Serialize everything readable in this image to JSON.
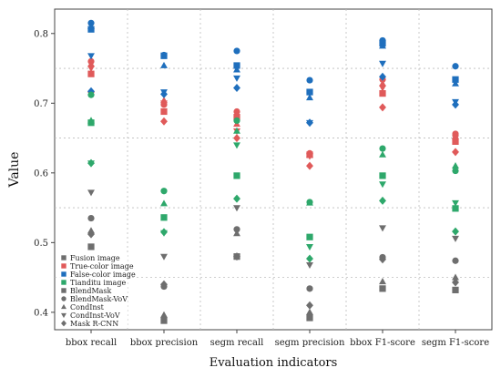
{
  "chart_data": {
    "type": "scatter",
    "xlabel": "Evaluation indicators",
    "ylabel": "Value",
    "categories": [
      "bbox recall",
      "bbox precision",
      "segm recall",
      "segm precision",
      "bbox F1-score",
      "segm F1-score"
    ],
    "ylim": [
      0.375,
      0.835
    ],
    "yticks": [
      0.4,
      0.5,
      0.6,
      0.7,
      0.8
    ],
    "ytick_labels": [
      "0.4",
      "0.5",
      "0.6",
      "0.7",
      "0.8"
    ],
    "grid": "dotted horizontal and vertical",
    "legend_position": "bottom-left",
    "colors": {
      "Fusion image": "#6e6e6e",
      "True-color image": "#e05a5a",
      "False-color image": "#1f6fbd",
      "Tianditu image": "#2ea86b"
    },
    "series": [
      {
        "name": "True-color image / BlendMask",
        "color": "#e05a5a",
        "marker": "square",
        "values": [
          0.742,
          0.688,
          0.68,
          0.626,
          0.714,
          0.645
        ]
      },
      {
        "name": "True-color image / BlendMask-VoV",
        "color": "#e05a5a",
        "marker": "circle",
        "values": [
          0.76,
          0.698,
          0.688,
          0.628,
          0.734,
          0.656
        ]
      },
      {
        "name": "True-color image / CondInst",
        "color": "#e05a5a",
        "marker": "triangle-up",
        "values": [
          0.756,
          0.704,
          0.67,
          0.626,
          0.728,
          0.652
        ]
      },
      {
        "name": "True-color image / CondInst-VoV",
        "color": "#e05a5a",
        "marker": "triangle-down",
        "values": [
          0.75,
          0.7,
          0.66,
          0.624,
          0.722,
          0.65
        ]
      },
      {
        "name": "True-color image / Mask R-CNN",
        "color": "#e05a5a",
        "marker": "diamond",
        "values": [
          0.716,
          0.674,
          0.65,
          0.61,
          0.694,
          0.63
        ]
      },
      {
        "name": "False-color image / BlendMask",
        "color": "#1f6fbd",
        "marker": "square",
        "values": [
          0.806,
          0.768,
          0.754,
          0.716,
          0.786,
          0.734
        ]
      },
      {
        "name": "False-color image / BlendMask-VoV",
        "color": "#1f6fbd",
        "marker": "circle",
        "values": [
          0.815,
          0.769,
          0.775,
          0.733,
          0.79,
          0.753
        ]
      },
      {
        "name": "False-color image / CondInst",
        "color": "#1f6fbd",
        "marker": "triangle-up",
        "values": [
          0.81,
          0.754,
          0.748,
          0.708,
          0.782,
          0.728
        ]
      },
      {
        "name": "False-color image / CondInst-VoV",
        "color": "#1f6fbd",
        "marker": "triangle-down",
        "values": [
          0.768,
          0.716,
          0.736,
          0.672,
          0.757,
          0.702
        ]
      },
      {
        "name": "False-color image / Mask R-CNN",
        "color": "#1f6fbd",
        "marker": "diamond",
        "values": [
          0.717,
          0.713,
          0.722,
          0.672,
          0.738,
          0.698
        ]
      },
      {
        "name": "Tianditu image / BlendMask",
        "color": "#2ea86b",
        "marker": "square",
        "values": [
          0.672,
          0.536,
          0.596,
          0.508,
          0.596,
          0.549
        ]
      },
      {
        "name": "Tianditu image / BlendMask-VoV",
        "color": "#2ea86b",
        "marker": "circle",
        "values": [
          0.712,
          0.574,
          0.675,
          0.558,
          0.635,
          0.603
        ]
      },
      {
        "name": "Tianditu image / CondInst",
        "color": "#2ea86b",
        "marker": "triangle-up",
        "values": [
          0.675,
          0.556,
          0.66,
          0.557,
          0.626,
          0.61
        ]
      },
      {
        "name": "Tianditu image / CondInst-VoV",
        "color": "#2ea86b",
        "marker": "triangle-down",
        "values": [
          0.614,
          0.514,
          0.64,
          0.494,
          0.584,
          0.557
        ]
      },
      {
        "name": "Tianditu image / Mask R-CNN",
        "color": "#2ea86b",
        "marker": "diamond",
        "values": [
          0.614,
          0.515,
          0.563,
          0.477,
          0.56,
          0.516
        ]
      },
      {
        "name": "Fusion image / BlendMask",
        "color": "#6e6e6e",
        "marker": "square",
        "values": [
          0.494,
          0.388,
          0.48,
          0.392,
          0.434,
          0.432
        ]
      },
      {
        "name": "Fusion image / BlendMask-VoV",
        "color": "#6e6e6e",
        "marker": "circle",
        "values": [
          0.535,
          0.437,
          0.519,
          0.434,
          0.479,
          0.474
        ]
      },
      {
        "name": "Fusion image / CondInst",
        "color": "#6e6e6e",
        "marker": "triangle-up",
        "values": [
          0.517,
          0.396,
          0.513,
          0.4,
          0.444,
          0.45
        ]
      },
      {
        "name": "Fusion image / CondInst-VoV",
        "color": "#6e6e6e",
        "marker": "triangle-down",
        "values": [
          0.572,
          0.48,
          0.55,
          0.468,
          0.521,
          0.506
        ]
      },
      {
        "name": "Fusion image / Mask R-CNN",
        "color": "#6e6e6e",
        "marker": "diamond",
        "values": [
          0.512,
          0.44,
          0.48,
          0.41,
          0.476,
          0.443
        ]
      }
    ],
    "legend": {
      "entries": [
        {
          "label": "Fusion image",
          "color": "#6e6e6e",
          "marker": "square"
        },
        {
          "label": "True-color image",
          "color": "#e05a5a",
          "marker": "square"
        },
        {
          "label": "False-color image",
          "color": "#1f6fbd",
          "marker": "square"
        },
        {
          "label": "Tianditu image",
          "color": "#2ea86b",
          "marker": "square"
        },
        {
          "label": "BlendMask",
          "color": "#6e6e6e",
          "marker": "square"
        },
        {
          "label": "BlendMask-VoV",
          "color": "#6e6e6e",
          "marker": "circle"
        },
        {
          "label": "CondInst",
          "color": "#6e6e6e",
          "marker": "triangle-up"
        },
        {
          "label": "CondInst-VoV",
          "color": "#6e6e6e",
          "marker": "triangle-down"
        },
        {
          "label": "Mask R-CNN",
          "color": "#6e6e6e",
          "marker": "diamond"
        }
      ]
    }
  }
}
